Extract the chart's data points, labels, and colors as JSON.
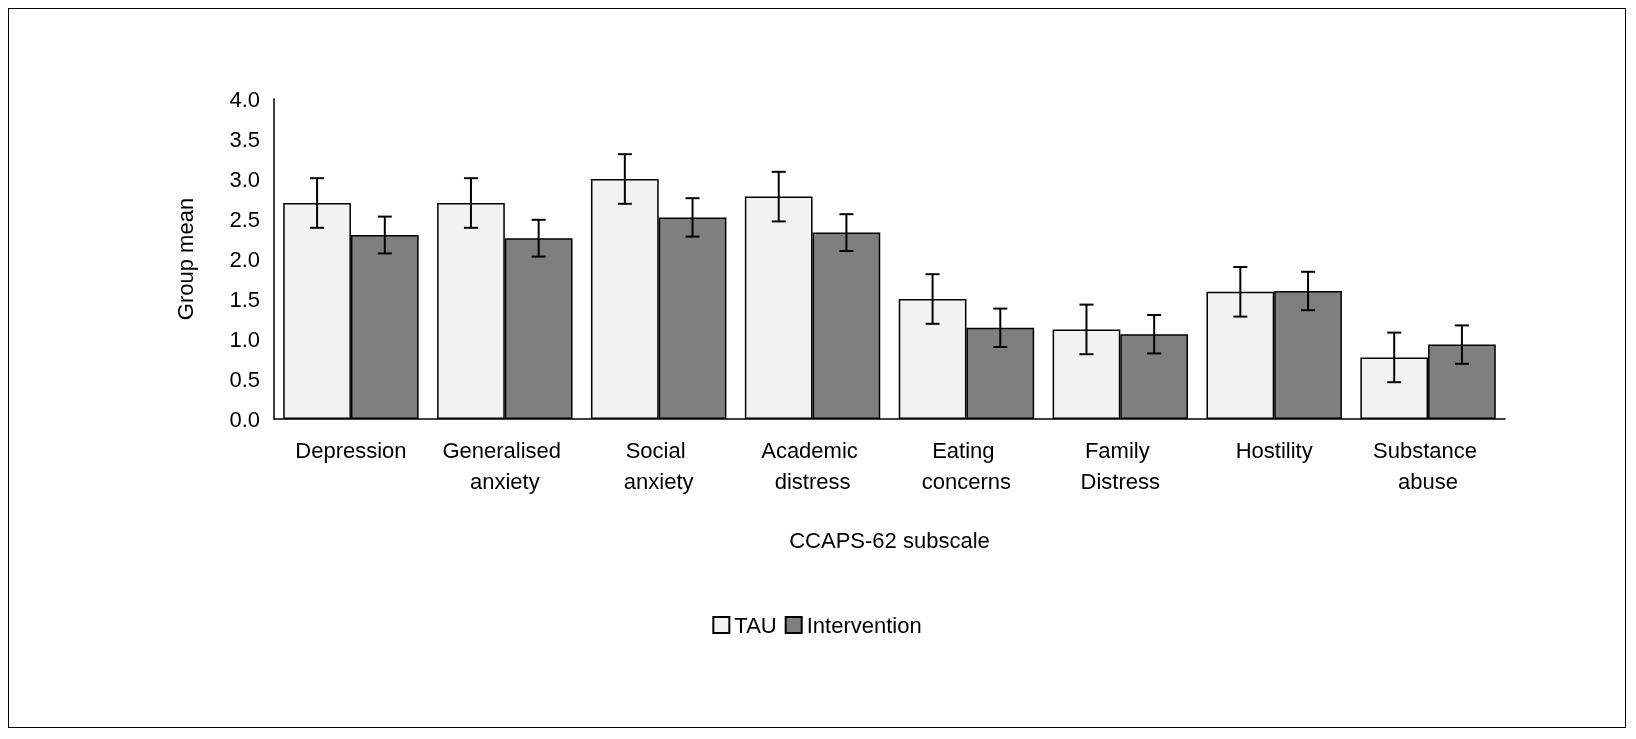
{
  "chart_data": {
    "type": "bar",
    "xlabel": "CCAPS-62 subscale",
    "ylabel": "Group mean",
    "categories": [
      "Depression",
      "Generalised anxiety",
      "Social anxiety",
      "Academic distress",
      "Eating concerns",
      "Family Distress",
      "Hostility",
      "Substance abuse"
    ],
    "series": [
      {
        "name": "TAU",
        "color": "#f2f2f2",
        "values": [
          2.7,
          2.7,
          3.0,
          2.78,
          1.5,
          1.12,
          1.59,
          0.77
        ],
        "errors": [
          0.31,
          0.31,
          0.31,
          0.31,
          0.31,
          0.31,
          0.31,
          0.31
        ]
      },
      {
        "name": "Intervention",
        "color": "#7f7f7f",
        "values": [
          2.3,
          2.26,
          2.52,
          2.33,
          1.14,
          1.06,
          1.6,
          0.93
        ],
        "errors": [
          0.23,
          0.23,
          0.24,
          0.23,
          0.24,
          0.24,
          0.24,
          0.24
        ]
      }
    ],
    "ylim": [
      0,
      4
    ],
    "yticks": [
      {
        "value": 0,
        "label": "0.0"
      },
      {
        "value": 0.5,
        "label": "0.5"
      },
      {
        "value": 1,
        "label": "1.0"
      },
      {
        "value": 1.5,
        "label": "1.5"
      },
      {
        "value": 2,
        "label": "2.0"
      },
      {
        "value": 2.5,
        "label": "2.5"
      },
      {
        "value": 3,
        "label": "3.0"
      },
      {
        "value": 3.5,
        "label": "3.5"
      },
      {
        "value": 4,
        "label": "4.0"
      }
    ],
    "grid": false,
    "legend": "bottom"
  }
}
